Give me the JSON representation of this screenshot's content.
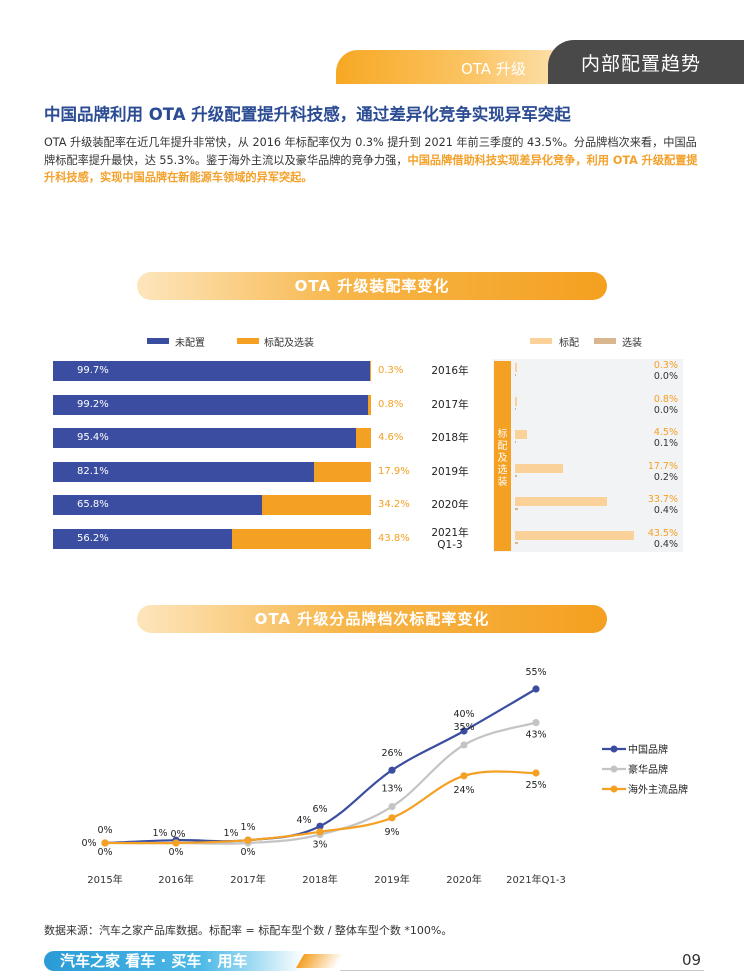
{
  "header": {
    "tab_ota": "OTA 升级",
    "tab_section": "内部配置趋势"
  },
  "headline": "中国品牌利用 OTA 升级配置提升科技感，通过差异化竞争实现异军突起",
  "intro": {
    "part1": "OTA 升级装配率在近几年提升非常快，从 2016 年标配率仅为 0.3% 提升到 2021 年前三季度的 43.5%。分品牌档次来看，中国品牌标配率提升最快，达 55.3%。鉴于海外主流以及豪华品牌的竞争力强，",
    "highlight": "中国品牌借助科技实现差异化竞争，利用 OTA 升级配置提升科技感，实现中国品牌在新能源车领域的异军突起。"
  },
  "chart1": {
    "title": "OTA 升级装配率变化",
    "legend_left": [
      "未配置",
      "标配及选装"
    ],
    "legend_right": [
      "标配",
      "选装"
    ],
    "vertical_label": "标配及选装",
    "rows": [
      {
        "year": "2016年",
        "year2": "",
        "none": "99.7%",
        "std": "0.3%",
        "r_std": "0.3%",
        "r_opt": "0.0%"
      },
      {
        "year": "2017年",
        "year2": "",
        "none": "99.2%",
        "std": "0.8%",
        "r_std": "0.8%",
        "r_opt": "0.0%"
      },
      {
        "year": "2018年",
        "year2": "",
        "none": "95.4%",
        "std": "4.6%",
        "r_std": "4.5%",
        "r_opt": "0.1%"
      },
      {
        "year": "2019年",
        "year2": "",
        "none": "82.1%",
        "std": "17.9%",
        "r_std": "17.7%",
        "r_opt": "0.2%"
      },
      {
        "year": "2020年",
        "year2": "",
        "none": "65.8%",
        "std": "34.2%",
        "r_std": "33.7%",
        "r_opt": "0.4%"
      },
      {
        "year": "2021年",
        "year2": "Q1-3",
        "none": "56.2%",
        "std": "43.8%",
        "r_std": "43.5%",
        "r_opt": "0.4%"
      }
    ]
  },
  "chart2": {
    "title": "OTA 升级分品牌档次标配率变化",
    "categories": [
      "2015年",
      "2016年",
      "2017年",
      "2018年",
      "2019年",
      "2020年",
      "2021年Q1-3"
    ],
    "series": [
      {
        "name": "中国品牌",
        "values": [
          0,
          1,
          1,
          6,
          26,
          40,
          55
        ],
        "labels": [
          "0%",
          "1%",
          "1%",
          "6%",
          "26%",
          "40%",
          "55%"
        ]
      },
      {
        "name": "豪华品牌",
        "values": [
          0,
          0,
          0,
          3,
          13,
          35,
          43
        ],
        "labels": [
          "0%",
          "0%",
          "0%",
          "3%",
          "13%",
          "35%",
          "43%"
        ]
      },
      {
        "name": "海外主流品牌",
        "values": [
          0,
          0,
          1,
          4,
          9,
          24,
          25
        ],
        "labels": [
          "0%",
          "0%",
          "1%",
          "4%",
          "9%",
          "24%",
          "25%"
        ]
      }
    ]
  },
  "chart_data": [
    {
      "type": "bar",
      "title": "OTA 升级装配率变化",
      "categories": [
        "2016年",
        "2017年",
        "2018年",
        "2019年",
        "2020年",
        "2021年Q1-3"
      ],
      "series": [
        {
          "name": "未配置",
          "values": [
            99.7,
            99.2,
            95.4,
            82.1,
            65.8,
            56.2
          ]
        },
        {
          "name": "标配及选装",
          "values": [
            0.3,
            0.8,
            4.6,
            17.9,
            34.2,
            43.8
          ]
        },
        {
          "name": "标配",
          "values": [
            0.3,
            0.8,
            4.5,
            17.7,
            33.7,
            43.5
          ]
        },
        {
          "name": "选装",
          "values": [
            0.0,
            0.0,
            0.1,
            0.2,
            0.4,
            0.4
          ]
        }
      ]
    },
    {
      "type": "line",
      "title": "OTA 升级分品牌档次标配率变化",
      "categories": [
        "2015年",
        "2016年",
        "2017年",
        "2018年",
        "2019年",
        "2020年",
        "2021年Q1-3"
      ],
      "series": [
        {
          "name": "中国品牌",
          "values": [
            0,
            1,
            1,
            6,
            26,
            40,
            55
          ]
        },
        {
          "name": "豪华品牌",
          "values": [
            0,
            0,
            0,
            3,
            13,
            35,
            43
          ]
        },
        {
          "name": "海外主流品牌",
          "values": [
            0,
            0,
            1,
            4,
            9,
            24,
            25
          ]
        }
      ]
    }
  ],
  "colors": {
    "blue": "#3a4da0",
    "orange": "#f4a023",
    "gray": "#c4c4c4",
    "light_orange": "#fbd19a"
  },
  "source": "数据来源：汽车之家产品库数据。标配率 = 标配车型个数 / 整体车型个数 *100%。",
  "footer": {
    "brand": "汽车之家 看车 · 买车 · 用车",
    "page": "09"
  }
}
